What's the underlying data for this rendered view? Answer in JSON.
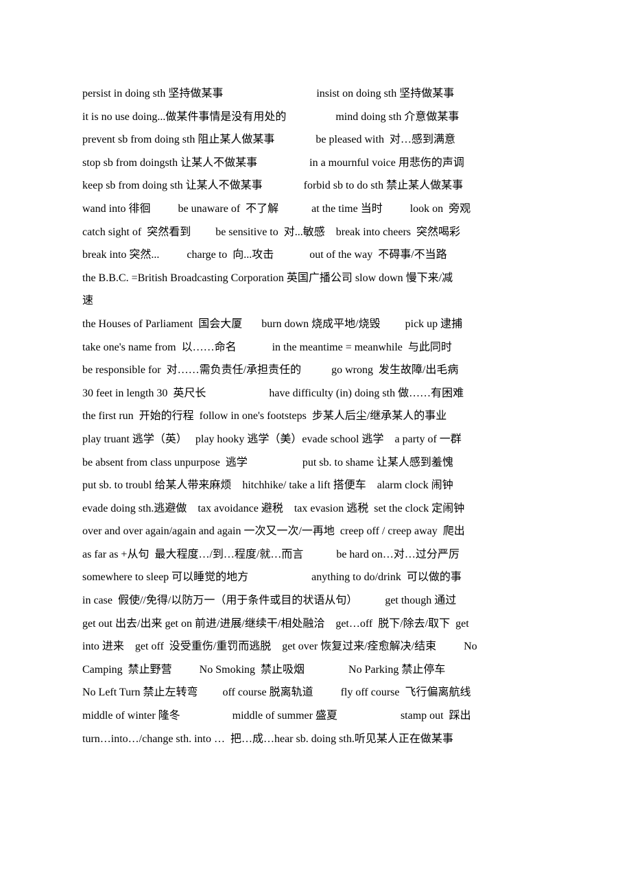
{
  "lines": [
    "persist in doing sth 坚持做某事                                  insist on doing sth 坚持做某事",
    "it is no use doing...做某件事情是没有用处的                  mind doing sth 介意做某事",
    "prevent sb from doing sth 阻止某人做某事               be pleased with  对…感到满意",
    "stop sb from doingsth 让某人不做某事                   in a mournful voice 用悲伤的声调",
    "keep sb from doing sth 让某人不做某事               forbid sb to do sth 禁止某人做某事",
    "wand into 徘徊          be unaware of  不了解            at the time 当时          look on  旁观",
    "catch sight of  突然看到         be sensitive to  对...敏感    break into cheers  突然喝彩",
    "break into 突然...          charge to  向...攻击             out of the way  不碍事/不当路",
    "the B.B.C. =British Broadcasting Corporation 英国广播公司 slow down 慢下来/减",
    "速",
    "the Houses of Parliament  国会大厦       burn down 烧成平地/烧毁         pick up 逮捕",
    "take one's name from  以……命名             in the meantime = meanwhile  与此同时",
    "be responsible for  对……需负责任/承担责任的           go wrong  发生故障/出毛病",
    "30 feet in length 30  英尺长                       have difficulty (in) doing sth 做……有困难",
    "the first run  开始的行程  follow in one's footsteps  步某人后尘/继承某人的事业",
    "play truant 逃学（英）   play hooky 逃学（美）evade school 逃学    a party of 一群",
    "be absent from class unpurpose  逃学                    put sb. to shame 让某人感到羞愧",
    "put sb. to troubl 给某人带来麻烦    hitchhike/ take a lift 搭便车    alarm clock 闹钟",
    "evade doing sth.逃避做    tax avoidance 避税    tax evasion 逃税  set the clock 定闹钟",
    "over and over again/again and again 一次又一次/一再地  creep off / creep away  爬出",
    "as far as +从句  最大程度…/到…程度/就…而言            be hard on…对…过分严厉",
    "somewhere to sleep 可以睡觉的地方                       anything to do/drink  可以做的事",
    "in case  假使//免得/以防万一（用于条件或目的状语从句）          get though 通过",
    "get out 出去/出来 get on 前进/进展/继续干/相处融洽    get…off  脱下/除去/取下  get",
    "into 进来    get off  没受重伤/重罚而逃脱    get over 恢复过来/痊愈解决/结束          No",
    "Camping  禁止野营          No Smoking  禁止吸烟                No Parking 禁止停车",
    "No Left Turn 禁止左转弯         off course 脱离轨道          fly off course  飞行偏离航线",
    "middle of winter 隆冬                   middle of summer 盛夏                       stamp out  踩出",
    "turn…into…/change sth. into …  把…成…hear sb. doing sth.听见某人正在做某事"
  ]
}
